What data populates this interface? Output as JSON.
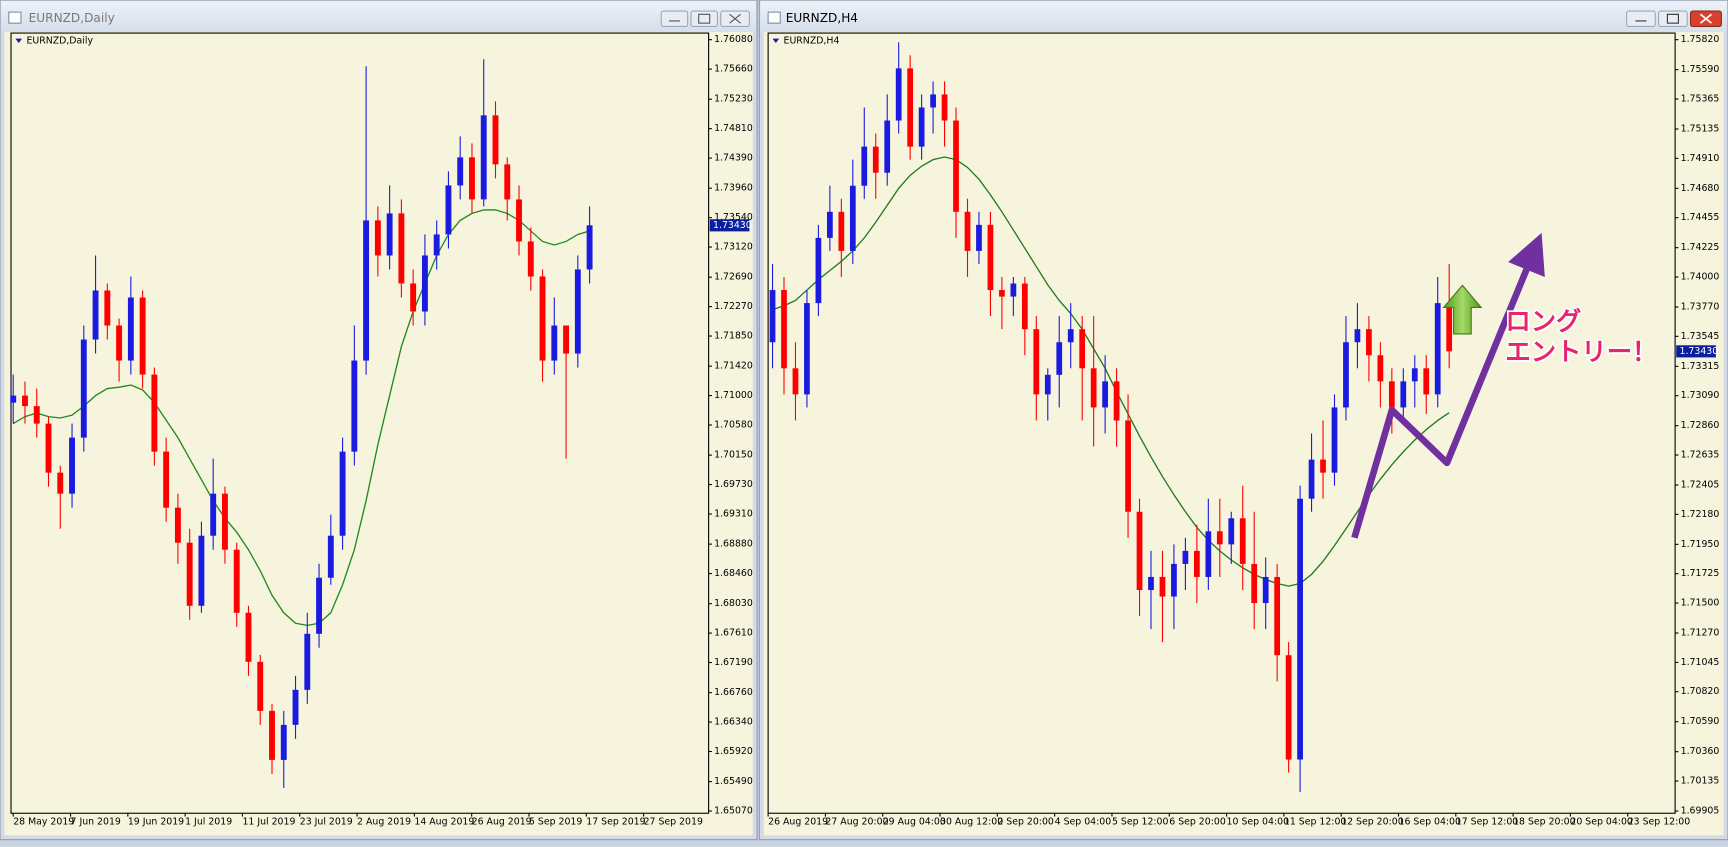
{
  "chart_data": [
    {
      "type": "candlestick",
      "title": "EURNZD,Daily",
      "up_color": "#1a1ae0",
      "down_color": "#ff0000",
      "open": [
        1.709,
        1.71,
        1.7085,
        1.706,
        1.699,
        1.696,
        1.704,
        1.718,
        1.725,
        1.72,
        1.715,
        1.724,
        1.713,
        1.702,
        1.694,
        1.689,
        1.68,
        1.69,
        1.696,
        1.688,
        1.679,
        1.672,
        1.665,
        1.658,
        1.663,
        1.668,
        1.676,
        1.684,
        1.69,
        1.702,
        1.715,
        1.735,
        1.73,
        1.736,
        1.726,
        1.722,
        1.73,
        1.733,
        1.74,
        1.744,
        1.738,
        1.75,
        1.743,
        1.738,
        1.732,
        1.727,
        1.715,
        1.72,
        1.716,
        1.728
      ],
      "high": [
        1.713,
        1.712,
        1.711,
        1.707,
        1.7,
        1.706,
        1.72,
        1.73,
        1.726,
        1.721,
        1.727,
        1.725,
        1.714,
        1.704,
        1.696,
        1.691,
        1.692,
        1.701,
        1.697,
        1.689,
        1.68,
        1.673,
        1.666,
        1.665,
        1.67,
        1.679,
        1.686,
        1.693,
        1.704,
        1.72,
        1.757,
        1.737,
        1.74,
        1.738,
        1.728,
        1.733,
        1.735,
        1.742,
        1.747,
        1.746,
        1.758,
        1.752,
        1.744,
        1.74,
        1.734,
        1.728,
        1.724,
        1.72,
        1.73,
        1.737
      ],
      "low": [
        1.706,
        1.706,
        1.704,
        1.697,
        1.691,
        1.694,
        1.702,
        1.716,
        1.718,
        1.712,
        1.713,
        1.711,
        1.7,
        1.692,
        1.686,
        1.678,
        1.679,
        1.688,
        1.686,
        1.677,
        1.67,
        1.663,
        1.656,
        1.654,
        1.661,
        1.666,
        1.674,
        1.683,
        1.688,
        1.7,
        1.713,
        1.727,
        1.728,
        1.724,
        1.72,
        1.72,
        1.728,
        1.731,
        1.738,
        1.736,
        1.737,
        1.741,
        1.735,
        1.73,
        1.725,
        1.712,
        1.713,
        1.701,
        1.714,
        1.726
      ],
      "close": [
        1.71,
        1.7085,
        1.706,
        1.699,
        1.696,
        1.704,
        1.718,
        1.725,
        1.72,
        1.715,
        1.724,
        1.713,
        1.702,
        1.694,
        1.689,
        1.68,
        1.69,
        1.696,
        1.688,
        1.679,
        1.672,
        1.665,
        1.658,
        1.663,
        1.668,
        1.676,
        1.684,
        1.69,
        1.702,
        1.715,
        1.735,
        1.73,
        1.736,
        1.726,
        1.722,
        1.73,
        1.733,
        1.74,
        1.744,
        1.738,
        1.75,
        1.743,
        1.738,
        1.732,
        1.727,
        1.715,
        1.72,
        1.716,
        1.728,
        1.7343
      ],
      "ma": {
        "color": "#1f8a1f",
        "values": [
          1.706,
          1.707,
          1.7075,
          1.707,
          1.7068,
          1.7072,
          1.7085,
          1.71,
          1.711,
          1.7112,
          1.7115,
          1.7108,
          1.709,
          1.7065,
          1.704,
          1.701,
          1.698,
          1.695,
          1.6925,
          1.6905,
          1.688,
          1.685,
          1.6815,
          1.679,
          1.6775,
          1.6772,
          1.6775,
          1.679,
          1.683,
          1.688,
          1.695,
          1.703,
          1.71,
          1.717,
          1.722,
          1.726,
          1.73,
          1.733,
          1.735,
          1.736,
          1.7365,
          1.7365,
          1.736,
          1.735,
          1.7335,
          1.732,
          1.7315,
          1.732,
          1.733,
          1.7335
        ]
      },
      "ylim": [
        1.6507,
        1.7608
      ],
      "yticks": [
        {
          "value": 1.7608,
          "label": "1.76080"
        },
        {
          "value": 1.7566,
          "label": "1.75660"
        },
        {
          "value": 1.7523,
          "label": "1.75230"
        },
        {
          "value": 1.7481,
          "label": "1.74810"
        },
        {
          "value": 1.7439,
          "label": "1.74390"
        },
        {
          "value": 1.7396,
          "label": "1.73960"
        },
        {
          "value": 1.7354,
          "label": "1.73540"
        },
        {
          "value": 1.7312,
          "label": "1.73120"
        },
        {
          "value": 1.7269,
          "label": "1.72690"
        },
        {
          "value": 1.7227,
          "label": "1.72270"
        },
        {
          "value": 1.7185,
          "label": "1.71850"
        },
        {
          "value": 1.7142,
          "label": "1.71420"
        },
        {
          "value": 1.71,
          "label": "1.71000"
        },
        {
          "value": 1.7058,
          "label": "1.70580"
        },
        {
          "value": 1.7015,
          "label": "1.70150"
        },
        {
          "value": 1.6973,
          "label": "1.69730"
        },
        {
          "value": 1.6931,
          "label": "1.69310"
        },
        {
          "value": 1.6888,
          "label": "1.68880"
        },
        {
          "value": 1.6846,
          "label": "1.68460"
        },
        {
          "value": 1.6803,
          "label": "1.68030"
        },
        {
          "value": 1.6761,
          "label": "1.67610"
        },
        {
          "value": 1.6719,
          "label": "1.67190"
        },
        {
          "value": 1.6676,
          "label": "1.66760"
        },
        {
          "value": 1.6634,
          "label": "1.66340"
        },
        {
          "value": 1.6592,
          "label": "1.65920"
        },
        {
          "value": 1.6549,
          "label": "1.65490"
        },
        {
          "value": 1.6507,
          "label": "1.65070"
        }
      ],
      "last_price": {
        "value": 1.7343,
        "label": "1.73430"
      },
      "x_labels": [
        "28 May 2019",
        "7 Jun 2019",
        "19 Jun 2019",
        "1 Jul 2019",
        "11 Jul 2019",
        "23 Jul 2019",
        "2 Aug 2019",
        "14 Aug 2019",
        "26 Aug 2019",
        "5 Sep 2019",
        "17 Sep 2019",
        "27 Sep 2019"
      ]
    },
    {
      "type": "candlestick",
      "title": "EURNZD,H4",
      "up_color": "#1a1ae0",
      "down_color": "#ff0000",
      "open": [
        1.735,
        1.739,
        1.733,
        1.731,
        1.738,
        1.743,
        1.745,
        1.742,
        1.747,
        1.75,
        1.748,
        1.752,
        1.756,
        1.75,
        1.753,
        1.754,
        1.752,
        1.745,
        1.742,
        1.744,
        1.739,
        1.7385,
        1.7395,
        1.736,
        1.731,
        1.7325,
        1.735,
        1.736,
        1.733,
        1.73,
        1.732,
        1.729,
        1.722,
        1.716,
        1.717,
        1.7155,
        1.718,
        1.719,
        1.717,
        1.7205,
        1.7195,
        1.7215,
        1.718,
        1.715,
        1.717,
        1.711,
        1.703,
        1.723,
        1.726,
        1.725,
        1.73,
        1.735,
        1.736,
        1.734,
        1.732,
        1.73,
        1.732,
        1.733,
        1.731,
        1.738
      ],
      "high": [
        1.741,
        1.74,
        1.735,
        1.739,
        1.744,
        1.747,
        1.746,
        1.749,
        1.753,
        1.751,
        1.754,
        1.758,
        1.757,
        1.754,
        1.755,
        1.755,
        1.753,
        1.746,
        1.745,
        1.745,
        1.74,
        1.74,
        1.74,
        1.737,
        1.733,
        1.737,
        1.738,
        1.737,
        1.737,
        1.734,
        1.733,
        1.731,
        1.723,
        1.719,
        1.719,
        1.7195,
        1.72,
        1.721,
        1.723,
        1.723,
        1.722,
        1.724,
        1.722,
        1.7185,
        1.718,
        1.712,
        1.724,
        1.728,
        1.729,
        1.731,
        1.737,
        1.738,
        1.737,
        1.735,
        1.733,
        1.733,
        1.734,
        1.734,
        1.74,
        1.741
      ],
      "low": [
        1.733,
        1.731,
        1.729,
        1.73,
        1.737,
        1.742,
        1.74,
        1.741,
        1.746,
        1.746,
        1.747,
        1.751,
        1.749,
        1.749,
        1.751,
        1.75,
        1.743,
        1.74,
        1.741,
        1.737,
        1.736,
        1.737,
        1.734,
        1.729,
        1.729,
        1.73,
        1.733,
        1.729,
        1.727,
        1.728,
        1.727,
        1.72,
        1.714,
        1.713,
        1.712,
        1.713,
        1.716,
        1.715,
        1.716,
        1.717,
        1.718,
        1.716,
        1.713,
        1.713,
        1.709,
        1.702,
        1.7005,
        1.722,
        1.723,
        1.724,
        1.729,
        1.733,
        1.732,
        1.73,
        1.728,
        1.729,
        1.73,
        1.7295,
        1.73,
        1.733
      ],
      "close": [
        1.739,
        1.733,
        1.731,
        1.738,
        1.743,
        1.745,
        1.742,
        1.747,
        1.75,
        1.748,
        1.752,
        1.756,
        1.75,
        1.753,
        1.754,
        1.752,
        1.745,
        1.742,
        1.744,
        1.739,
        1.7385,
        1.7395,
        1.736,
        1.731,
        1.7325,
        1.735,
        1.736,
        1.733,
        1.73,
        1.732,
        1.729,
        1.722,
        1.716,
        1.717,
        1.7155,
        1.718,
        1.719,
        1.717,
        1.7205,
        1.7195,
        1.7215,
        1.718,
        1.715,
        1.717,
        1.711,
        1.703,
        1.723,
        1.726,
        1.725,
        1.73,
        1.735,
        1.736,
        1.734,
        1.732,
        1.73,
        1.732,
        1.733,
        1.731,
        1.738,
        1.7343
      ],
      "ma": {
        "color": "#1f7a1f",
        "values": [
          1.7375,
          1.7378,
          1.7382,
          1.739,
          1.7398,
          1.7405,
          1.7412,
          1.742,
          1.743,
          1.7442,
          1.7455,
          1.7468,
          1.7478,
          1.7485,
          1.749,
          1.7492,
          1.749,
          1.7484,
          1.7475,
          1.7463,
          1.745,
          1.7436,
          1.7422,
          1.7408,
          1.7394,
          1.7382,
          1.7372,
          1.736,
          1.7345,
          1.733,
          1.7312,
          1.7295,
          1.7278,
          1.7262,
          1.7247,
          1.7233,
          1.722,
          1.7208,
          1.7198,
          1.719,
          1.7183,
          1.7177,
          1.7172,
          1.7168,
          1.7165,
          1.7163,
          1.7165,
          1.7172,
          1.7182,
          1.7194,
          1.7207,
          1.722,
          1.7233,
          1.7245,
          1.7256,
          1.7266,
          1.7275,
          1.7283,
          1.729,
          1.7296
        ]
      },
      "ylim": [
        1.69905,
        1.7582
      ],
      "yticks": [
        {
          "value": 1.7582,
          "label": "1.75820"
        },
        {
          "value": 1.7559,
          "label": "1.75590"
        },
        {
          "value": 1.75365,
          "label": "1.75365"
        },
        {
          "value": 1.75135,
          "label": "1.75135"
        },
        {
          "value": 1.7491,
          "label": "1.74910"
        },
        {
          "value": 1.7468,
          "label": "1.74680"
        },
        {
          "value": 1.74455,
          "label": "1.74455"
        },
        {
          "value": 1.74225,
          "label": "1.74225"
        },
        {
          "value": 1.74,
          "label": "1.74000"
        },
        {
          "value": 1.7377,
          "label": "1.73770"
        },
        {
          "value": 1.73545,
          "label": "1.73545"
        },
        {
          "value": 1.73315,
          "label": "1.73315"
        },
        {
          "value": 1.7309,
          "label": "1.73090"
        },
        {
          "value": 1.7286,
          "label": "1.72860"
        },
        {
          "value": 1.72635,
          "label": "1.72635"
        },
        {
          "value": 1.72405,
          "label": "1.72405"
        },
        {
          "value": 1.7218,
          "label": "1.72180"
        },
        {
          "value": 1.7195,
          "label": "1.71950"
        },
        {
          "value": 1.71725,
          "label": "1.71725"
        },
        {
          "value": 1.715,
          "label": "1.71500"
        },
        {
          "value": 1.7127,
          "label": "1.71270"
        },
        {
          "value": 1.71045,
          "label": "1.71045"
        },
        {
          "value": 1.7082,
          "label": "1.70820"
        },
        {
          "value": 1.7059,
          "label": "1.70590"
        },
        {
          "value": 1.7036,
          "label": "1.70360"
        },
        {
          "value": 1.70135,
          "label": "1.70135"
        },
        {
          "value": 1.69905,
          "label": "1.69905"
        }
      ],
      "last_price": {
        "value": 1.7343,
        "label": "1.73430"
      },
      "x_labels": [
        "26 Aug 2019",
        "27 Aug 20:00",
        "29 Aug 04:00",
        "30 Aug 12:00",
        "2 Sep 20:00",
        "4 Sep 04:00",
        "5 Sep 12:00",
        "6 Sep 20:00",
        "10 Sep 04:00",
        "11 Sep 12:00",
        "12 Sep 20:00",
        "16 Sep 04:00",
        "17 Sep 12:00",
        "18 Sep 20:00",
        "20 Sep 04:00",
        "23 Sep 12:00"
      ],
      "annotation": [
        "ロング",
        "エントリー！"
      ]
    }
  ]
}
